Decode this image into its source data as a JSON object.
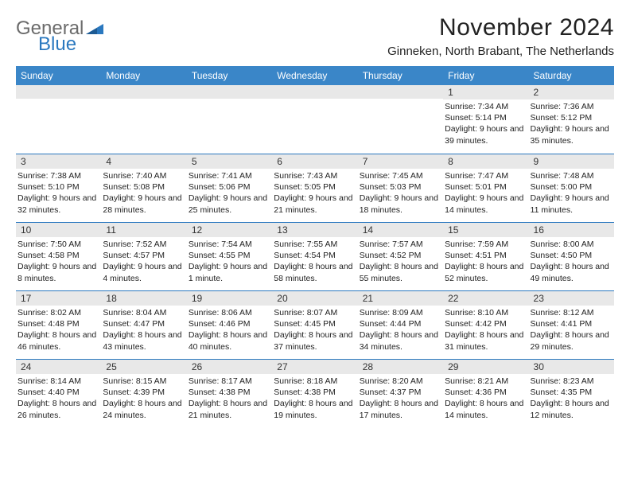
{
  "logo": {
    "word1": "General",
    "word2": "Blue"
  },
  "title": "November 2024",
  "location": "Ginneken, North Brabant, The Netherlands",
  "colors": {
    "header_bg": "#3a86c8",
    "header_text": "#ffffff",
    "daynum_bg": "#e8e8e8",
    "rule": "#2a78bf",
    "logo_gray": "#6b6b6b",
    "logo_blue": "#2a78bf",
    "page_bg": "#ffffff",
    "body_text": "#222222"
  },
  "dow": [
    "Sunday",
    "Monday",
    "Tuesday",
    "Wednesday",
    "Thursday",
    "Friday",
    "Saturday"
  ],
  "weeks": [
    [
      null,
      null,
      null,
      null,
      null,
      {
        "n": "1",
        "sr": "7:34 AM",
        "ss": "5:14 PM",
        "dl": "9 hours and 39 minutes."
      },
      {
        "n": "2",
        "sr": "7:36 AM",
        "ss": "5:12 PM",
        "dl": "9 hours and 35 minutes."
      }
    ],
    [
      {
        "n": "3",
        "sr": "7:38 AM",
        "ss": "5:10 PM",
        "dl": "9 hours and 32 minutes."
      },
      {
        "n": "4",
        "sr": "7:40 AM",
        "ss": "5:08 PM",
        "dl": "9 hours and 28 minutes."
      },
      {
        "n": "5",
        "sr": "7:41 AM",
        "ss": "5:06 PM",
        "dl": "9 hours and 25 minutes."
      },
      {
        "n": "6",
        "sr": "7:43 AM",
        "ss": "5:05 PM",
        "dl": "9 hours and 21 minutes."
      },
      {
        "n": "7",
        "sr": "7:45 AM",
        "ss": "5:03 PM",
        "dl": "9 hours and 18 minutes."
      },
      {
        "n": "8",
        "sr": "7:47 AM",
        "ss": "5:01 PM",
        "dl": "9 hours and 14 minutes."
      },
      {
        "n": "9",
        "sr": "7:48 AM",
        "ss": "5:00 PM",
        "dl": "9 hours and 11 minutes."
      }
    ],
    [
      {
        "n": "10",
        "sr": "7:50 AM",
        "ss": "4:58 PM",
        "dl": "9 hours and 8 minutes."
      },
      {
        "n": "11",
        "sr": "7:52 AM",
        "ss": "4:57 PM",
        "dl": "9 hours and 4 minutes."
      },
      {
        "n": "12",
        "sr": "7:54 AM",
        "ss": "4:55 PM",
        "dl": "9 hours and 1 minute."
      },
      {
        "n": "13",
        "sr": "7:55 AM",
        "ss": "4:54 PM",
        "dl": "8 hours and 58 minutes."
      },
      {
        "n": "14",
        "sr": "7:57 AM",
        "ss": "4:52 PM",
        "dl": "8 hours and 55 minutes."
      },
      {
        "n": "15",
        "sr": "7:59 AM",
        "ss": "4:51 PM",
        "dl": "8 hours and 52 minutes."
      },
      {
        "n": "16",
        "sr": "8:00 AM",
        "ss": "4:50 PM",
        "dl": "8 hours and 49 minutes."
      }
    ],
    [
      {
        "n": "17",
        "sr": "8:02 AM",
        "ss": "4:48 PM",
        "dl": "8 hours and 46 minutes."
      },
      {
        "n": "18",
        "sr": "8:04 AM",
        "ss": "4:47 PM",
        "dl": "8 hours and 43 minutes."
      },
      {
        "n": "19",
        "sr": "8:06 AM",
        "ss": "4:46 PM",
        "dl": "8 hours and 40 minutes."
      },
      {
        "n": "20",
        "sr": "8:07 AM",
        "ss": "4:45 PM",
        "dl": "8 hours and 37 minutes."
      },
      {
        "n": "21",
        "sr": "8:09 AM",
        "ss": "4:44 PM",
        "dl": "8 hours and 34 minutes."
      },
      {
        "n": "22",
        "sr": "8:10 AM",
        "ss": "4:42 PM",
        "dl": "8 hours and 31 minutes."
      },
      {
        "n": "23",
        "sr": "8:12 AM",
        "ss": "4:41 PM",
        "dl": "8 hours and 29 minutes."
      }
    ],
    [
      {
        "n": "24",
        "sr": "8:14 AM",
        "ss": "4:40 PM",
        "dl": "8 hours and 26 minutes."
      },
      {
        "n": "25",
        "sr": "8:15 AM",
        "ss": "4:39 PM",
        "dl": "8 hours and 24 minutes."
      },
      {
        "n": "26",
        "sr": "8:17 AM",
        "ss": "4:38 PM",
        "dl": "8 hours and 21 minutes."
      },
      {
        "n": "27",
        "sr": "8:18 AM",
        "ss": "4:38 PM",
        "dl": "8 hours and 19 minutes."
      },
      {
        "n": "28",
        "sr": "8:20 AM",
        "ss": "4:37 PM",
        "dl": "8 hours and 17 minutes."
      },
      {
        "n": "29",
        "sr": "8:21 AM",
        "ss": "4:36 PM",
        "dl": "8 hours and 14 minutes."
      },
      {
        "n": "30",
        "sr": "8:23 AM",
        "ss": "4:35 PM",
        "dl": "8 hours and 12 minutes."
      }
    ]
  ],
  "labels": {
    "sunrise": "Sunrise:",
    "sunset": "Sunset:",
    "daylight": "Daylight:"
  }
}
